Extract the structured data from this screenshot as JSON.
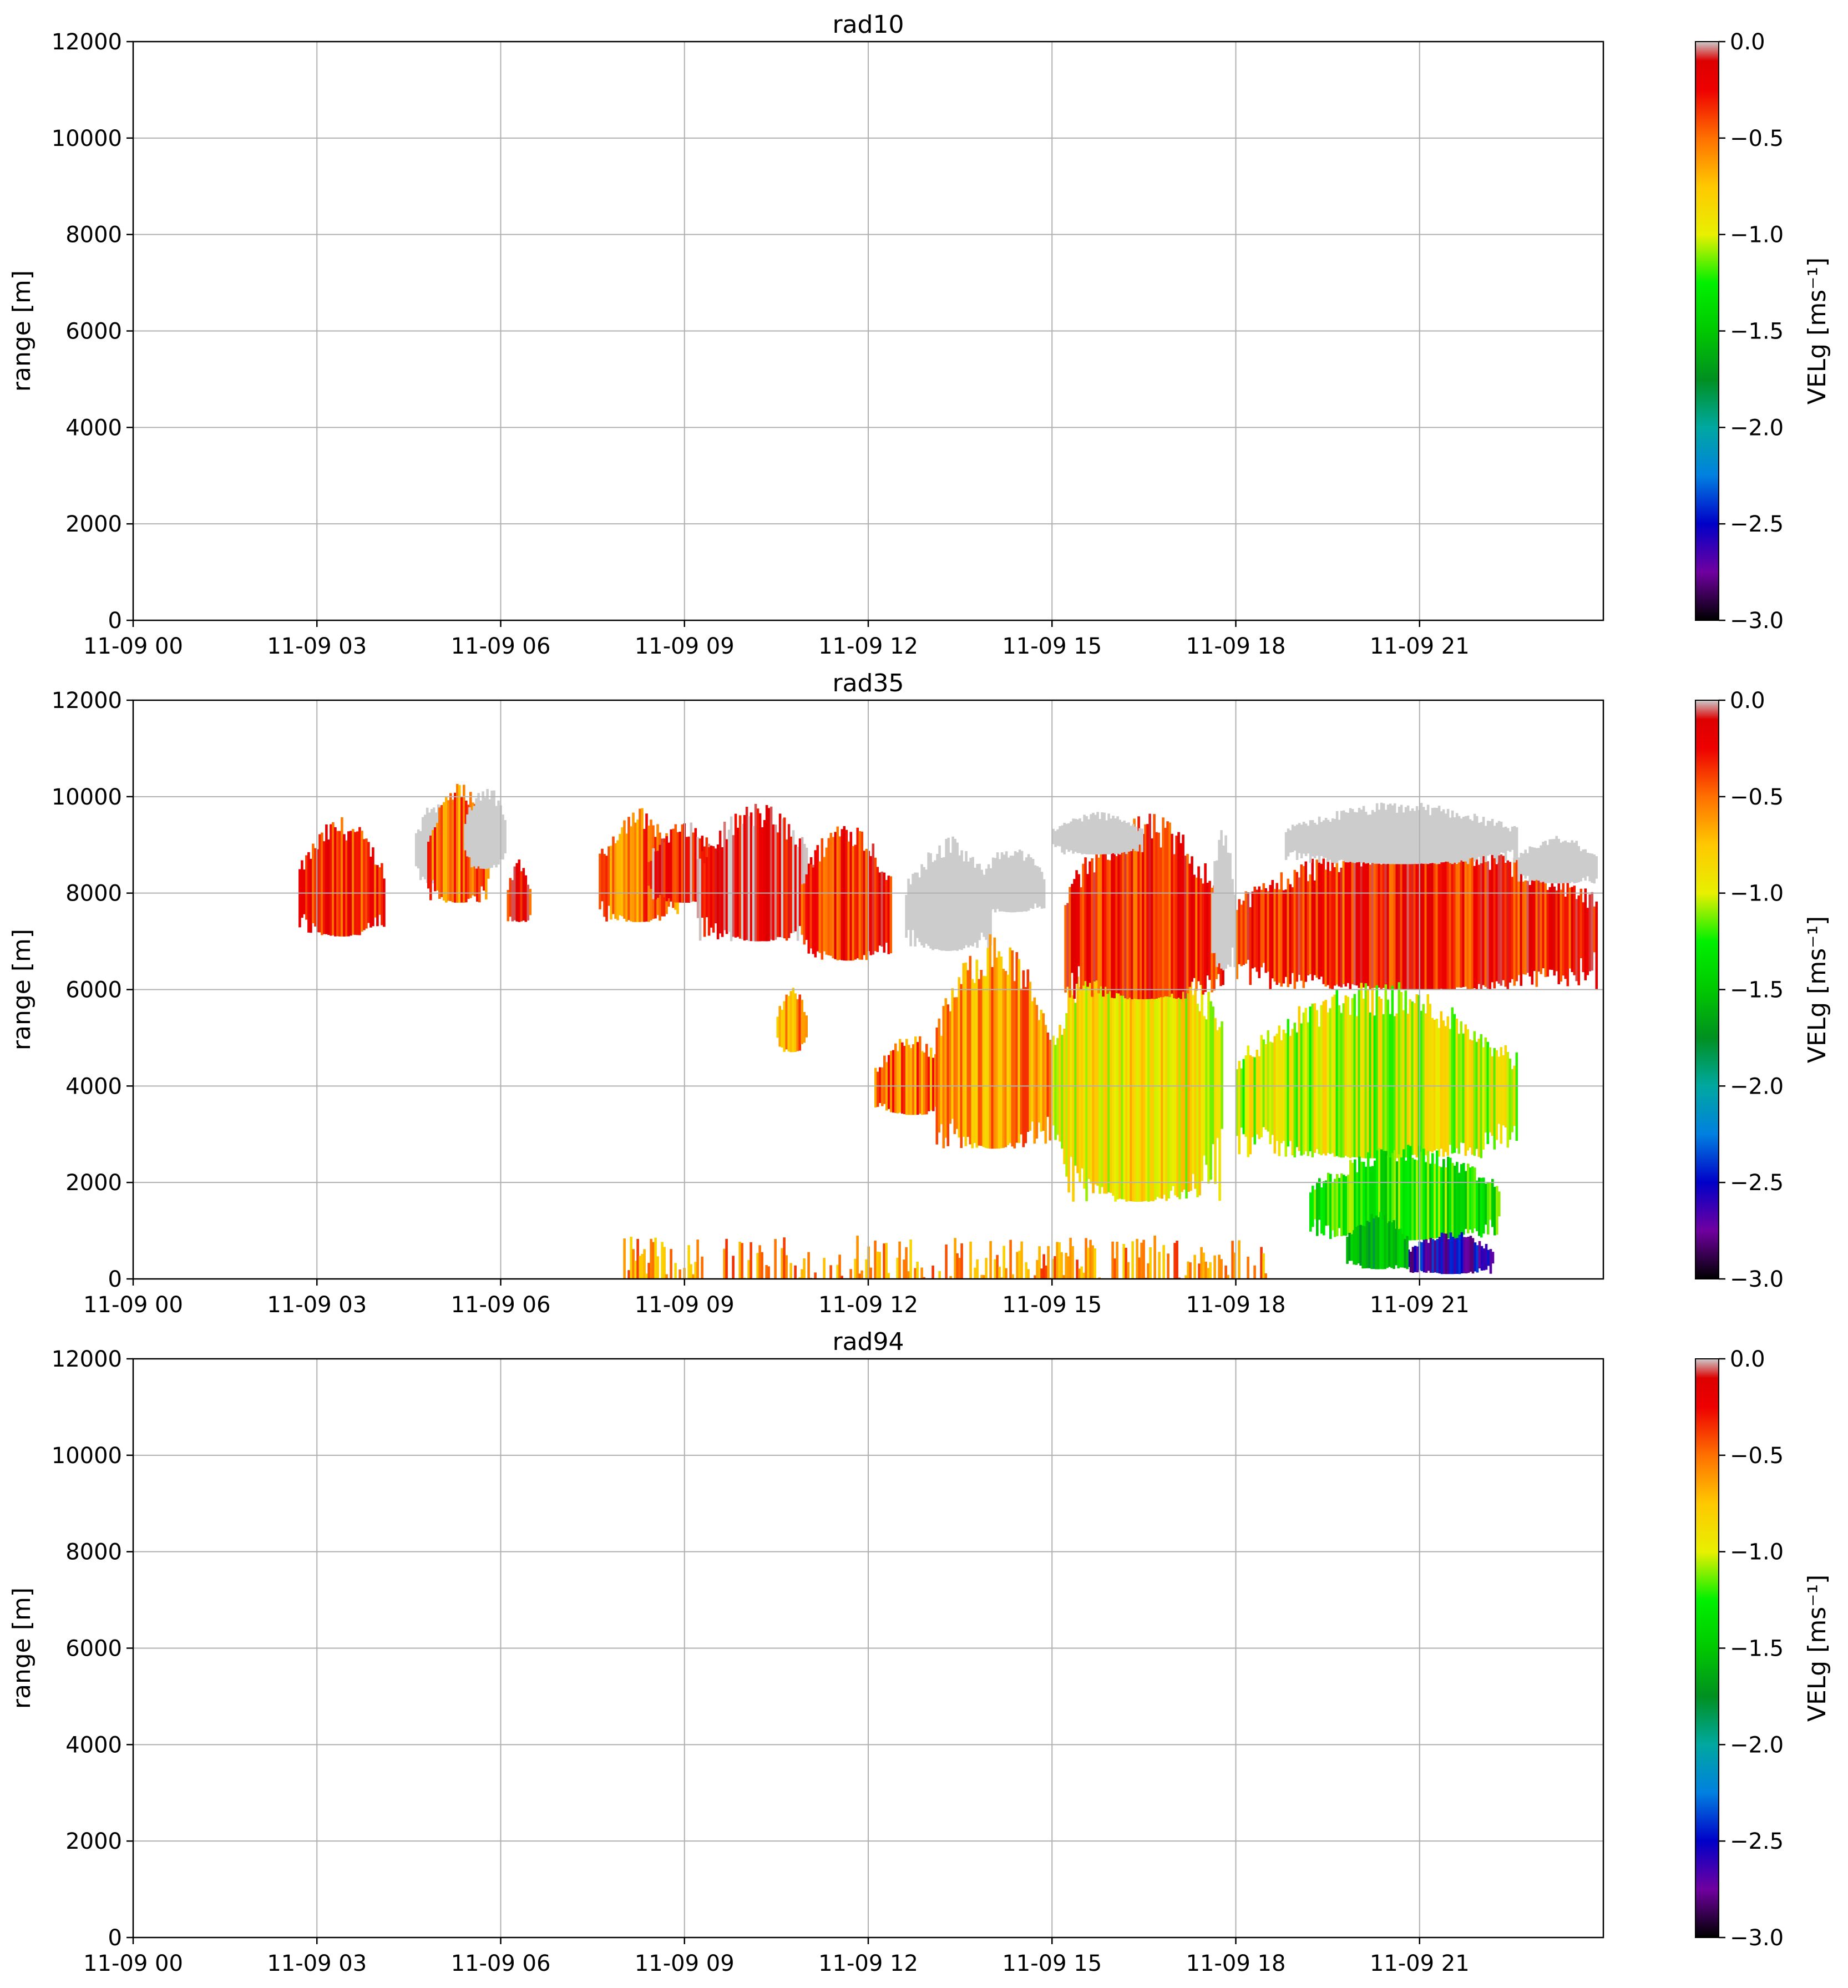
{
  "chart_data": [
    {
      "type": "heatmap",
      "title": "rad10",
      "ylabel": "range [m]",
      "xlabel": "",
      "ylim": [
        0,
        12000
      ],
      "xlim_hours": [
        0,
        24
      ],
      "yticks": [
        0,
        2000,
        4000,
        6000,
        8000,
        10000,
        12000
      ],
      "xticks": [
        {
          "hour": 0,
          "label": "11-09 00"
        },
        {
          "hour": 3,
          "label": "11-09 03"
        },
        {
          "hour": 6,
          "label": "11-09 06"
        },
        {
          "hour": 9,
          "label": "11-09 09"
        },
        {
          "hour": 12,
          "label": "11-09 12"
        },
        {
          "hour": 15,
          "label": "11-09 15"
        },
        {
          "hour": 18,
          "label": "11-09 18"
        },
        {
          "hour": 21,
          "label": "11-09 21"
        }
      ],
      "grid": true,
      "colorbar": {
        "label": "VELg [ms⁻¹]",
        "range": [
          -3.0,
          0.0
        ],
        "ticks": [
          "0.0",
          "−0.5",
          "−1.0",
          "−1.5",
          "−2.0",
          "−2.5",
          "−3.0"
        ]
      },
      "regions": []
    },
    {
      "type": "heatmap",
      "title": "rad35",
      "ylabel": "range [m]",
      "xlabel": "",
      "ylim": [
        0,
        12000
      ],
      "xlim_hours": [
        0,
        24
      ],
      "yticks": [
        0,
        2000,
        4000,
        6000,
        8000,
        10000,
        12000
      ],
      "xticks": [
        {
          "hour": 0,
          "label": "11-09 00"
        },
        {
          "hour": 3,
          "label": "11-09 03"
        },
        {
          "hour": 6,
          "label": "11-09 06"
        },
        {
          "hour": 9,
          "label": "11-09 09"
        },
        {
          "hour": 12,
          "label": "11-09 12"
        },
        {
          "hour": 15,
          "label": "11-09 15"
        },
        {
          "hour": 18,
          "label": "11-09 18"
        },
        {
          "hour": 21,
          "label": "11-09 21"
        }
      ],
      "grid": true,
      "colorbar": {
        "label": "VELg [ms⁻¹]",
        "range": [
          -3.0,
          0.0
        ],
        "ticks": [
          "0.0",
          "−0.5",
          "−1.0",
          "−1.5",
          "−2.0",
          "−2.5",
          "−3.0"
        ]
      },
      "regions": [
        {
          "name": "cloud-0230-0430",
          "t0": 2.7,
          "t1": 4.1,
          "z0": 7100,
          "z1": 9600,
          "vel": -0.3
        },
        {
          "name": "cloud-0430-0540-gray",
          "t0": 4.6,
          "t1": 5.2,
          "z0": 8200,
          "z1": 10000,
          "vel": 0.0
        },
        {
          "name": "cloud-0500-0600",
          "t0": 4.8,
          "t1": 5.8,
          "z0": 7800,
          "z1": 10300,
          "vel": -0.5
        },
        {
          "name": "cloud-0530-0600-gray",
          "t0": 5.4,
          "t1": 6.1,
          "z0": 8500,
          "z1": 10300,
          "vel": 0.0
        },
        {
          "name": "cloud-0615-0700",
          "t0": 6.1,
          "t1": 6.5,
          "z0": 7400,
          "z1": 8700,
          "vel": -0.3
        },
        {
          "name": "cloud-0730-0900",
          "t0": 7.6,
          "t1": 8.9,
          "z0": 7400,
          "z1": 9800,
          "vel": -0.5
        },
        {
          "name": "cloud-0830-0950",
          "t0": 8.4,
          "t1": 9.6,
          "z0": 7800,
          "z1": 9500,
          "vel": -0.2
        },
        {
          "name": "cloud-0900-1100",
          "t0": 9.2,
          "t1": 11.2,
          "z0": 7000,
          "z1": 9900,
          "vel": -0.2
        },
        {
          "name": "cloud-1100-1230",
          "t0": 10.9,
          "t1": 12.4,
          "z0": 6600,
          "z1": 9600,
          "vel": -0.3
        },
        {
          "name": "cloud-1200-1330-gray",
          "t0": 12.6,
          "t1": 14.0,
          "z0": 6800,
          "z1": 9200,
          "vel": 0.0
        },
        {
          "name": "cloud-1345-1450-gray",
          "t0": 13.8,
          "t1": 14.9,
          "z0": 7600,
          "z1": 9000,
          "vel": 0.0
        },
        {
          "name": "patch-1030-1130",
          "t0": 10.5,
          "t1": 11.0,
          "z0": 4700,
          "z1": 6100,
          "vel": -0.6
        },
        {
          "name": "mid-cloud-1200-1300",
          "t0": 12.1,
          "t1": 13.3,
          "z0": 3400,
          "z1": 5100,
          "vel": -0.5
        },
        {
          "name": "mid-cloud-1300-1500",
          "t0": 13.1,
          "t1": 15.0,
          "z0": 2700,
          "z1": 7200,
          "vel": -0.6
        },
        {
          "name": "low-cloud-1500-1800",
          "t0": 15.0,
          "t1": 17.8,
          "z0": 1600,
          "z1": 8000,
          "vel": -0.9
        },
        {
          "name": "upper-cloud-1500-1800",
          "t0": 15.2,
          "t1": 17.8,
          "z0": 5800,
          "z1": 9700,
          "vel": -0.3
        },
        {
          "name": "gray-top-1500-1600",
          "t0": 15.0,
          "t1": 16.5,
          "z0": 8800,
          "z1": 9700,
          "vel": 0.0
        },
        {
          "name": "gray-top-1700-1800",
          "t0": 17.6,
          "t1": 18.0,
          "z0": 6400,
          "z1": 9600,
          "vel": 0.0
        },
        {
          "name": "big-cloud-1800-2230-upper",
          "t0": 18.0,
          "t1": 23.9,
          "z0": 6000,
          "z1": 9300,
          "vel": -0.3
        },
        {
          "name": "big-cloud-gray-top",
          "t0": 18.8,
          "t1": 22.6,
          "z0": 8600,
          "z1": 9900,
          "vel": 0.0
        },
        {
          "name": "big-cloud-gray-right",
          "t0": 22.6,
          "t1": 23.9,
          "z0": 8200,
          "z1": 9200,
          "vel": 0.0
        },
        {
          "name": "big-cloud-1800-2230-middle",
          "t0": 18.0,
          "t1": 22.6,
          "z0": 2500,
          "z1": 6200,
          "vel": -1.0
        },
        {
          "name": "big-cloud-1800-2230-lower",
          "t0": 19.2,
          "t1": 22.3,
          "z0": 800,
          "z1": 2800,
          "vel": -1.3
        },
        {
          "name": "precip-2030-2230",
          "t0": 20.8,
          "t1": 22.2,
          "z0": 100,
          "z1": 1000,
          "vel": -2.6
        },
        {
          "name": "precip-2000-2030",
          "t0": 19.8,
          "t1": 20.8,
          "z0": 200,
          "z1": 1400,
          "vel": -1.6
        },
        {
          "name": "surface-clutter",
          "t0": 8.0,
          "t1": 18.5,
          "z0": 0,
          "z1": 900,
          "vel": -0.6
        }
      ]
    },
    {
      "type": "heatmap",
      "title": "rad94",
      "ylabel": "range [m]",
      "xlabel": "",
      "ylim": [
        0,
        12000
      ],
      "xlim_hours": [
        0,
        24
      ],
      "yticks": [
        0,
        2000,
        4000,
        6000,
        8000,
        10000,
        12000
      ],
      "xticks": [
        {
          "hour": 0,
          "label": "11-09 00"
        },
        {
          "hour": 3,
          "label": "11-09 03"
        },
        {
          "hour": 6,
          "label": "11-09 06"
        },
        {
          "hour": 9,
          "label": "11-09 09"
        },
        {
          "hour": 12,
          "label": "11-09 12"
        },
        {
          "hour": 15,
          "label": "11-09 15"
        },
        {
          "hour": 18,
          "label": "11-09 18"
        },
        {
          "hour": 21,
          "label": "11-09 21"
        }
      ],
      "grid": true,
      "colorbar": {
        "label": "VELg [ms⁻¹]",
        "range": [
          -3.0,
          0.0
        ],
        "ticks": [
          "0.0",
          "−0.5",
          "−1.0",
          "−1.5",
          "−2.0",
          "−2.5",
          "−3.0"
        ]
      },
      "regions": []
    }
  ],
  "colormap": [
    {
      "v": -3.0,
      "c": "#000000"
    },
    {
      "v": -2.75,
      "c": "#7000a0"
    },
    {
      "v": -2.5,
      "c": "#0000c8"
    },
    {
      "v": -2.25,
      "c": "#0080e0"
    },
    {
      "v": -2.0,
      "c": "#00a8a0"
    },
    {
      "v": -1.75,
      "c": "#009020"
    },
    {
      "v": -1.5,
      "c": "#00c800"
    },
    {
      "v": -1.25,
      "c": "#00f000"
    },
    {
      "v": -1.0,
      "c": "#e8f000"
    },
    {
      "v": -0.75,
      "c": "#ffc800"
    },
    {
      "v": -0.5,
      "c": "#ff7000"
    },
    {
      "v": -0.25,
      "c": "#ee0000"
    },
    {
      "v": -0.1,
      "c": "#dd0000"
    },
    {
      "v": 0.0,
      "c": "#cccccc"
    }
  ]
}
